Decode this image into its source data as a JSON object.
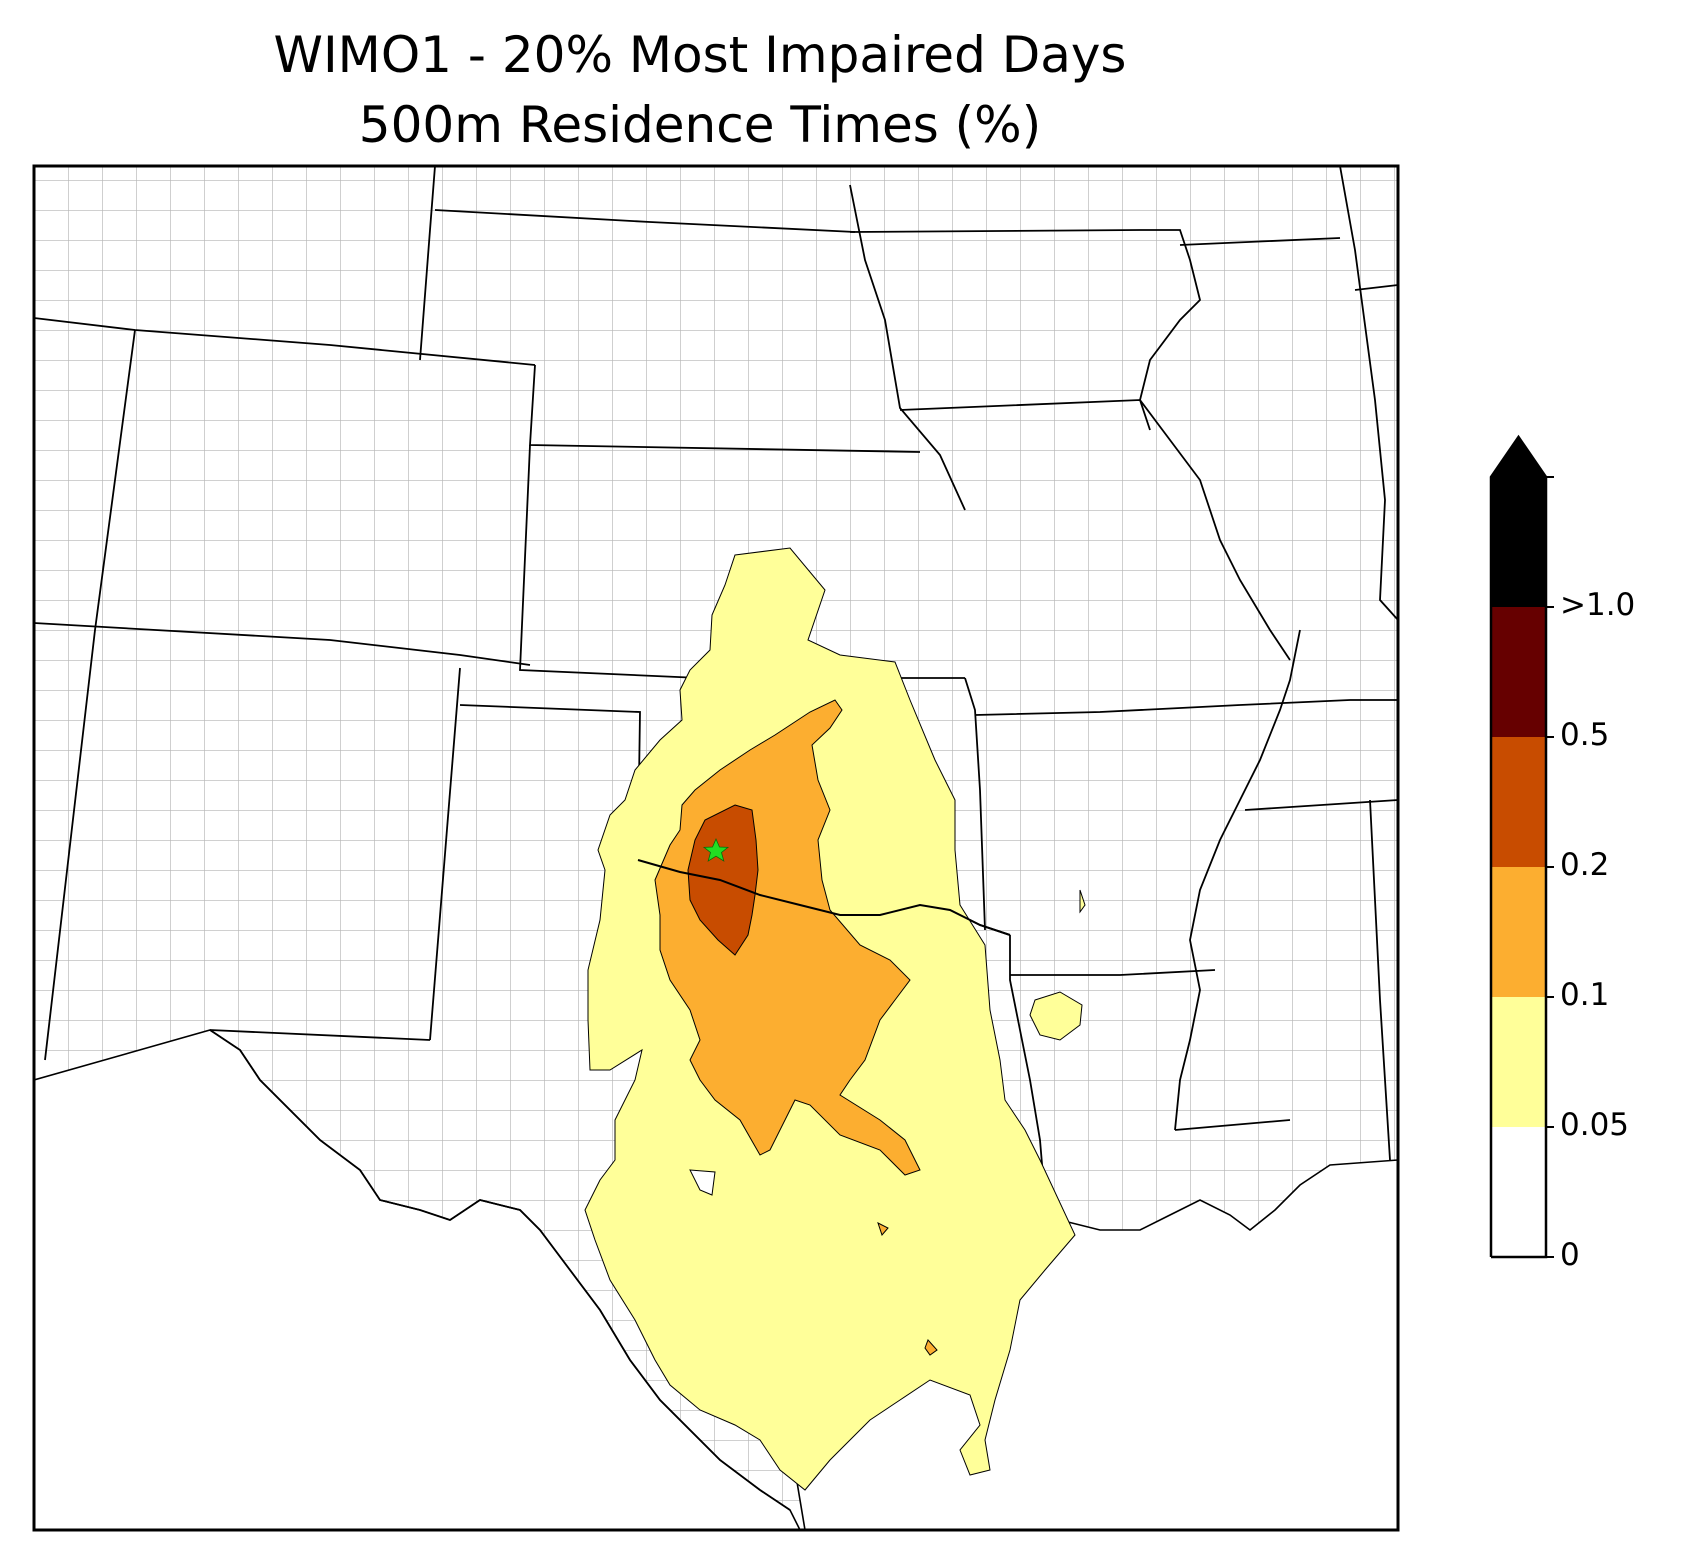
{
  "title": {
    "line1": "WIMO1 - 20% Most Impaired Days",
    "line2": "500m Residence Times (%)"
  },
  "colorbar": {
    "bins": [
      {
        "lower": "0",
        "color": "#ffffff"
      },
      {
        "lower": "0.05",
        "color": "#ffff99"
      },
      {
        "lower": "0.1",
        "color": "#fcae30"
      },
      {
        "lower": "0.2",
        "color": "#c84c00"
      },
      {
        "lower": "0.5",
        "color": "#660000"
      },
      {
        "lower": ">1.0",
        "color": "#000000"
      }
    ],
    "extend": "max",
    "tick_labels": [
      "0",
      "0.05",
      "0.1",
      "0.2",
      "0.5",
      ">1.0"
    ]
  },
  "map": {
    "site_marker": "green-star",
    "site_color": "#22dd22",
    "boundary_color": "#000000",
    "county_color": "#a8a8a8"
  }
}
